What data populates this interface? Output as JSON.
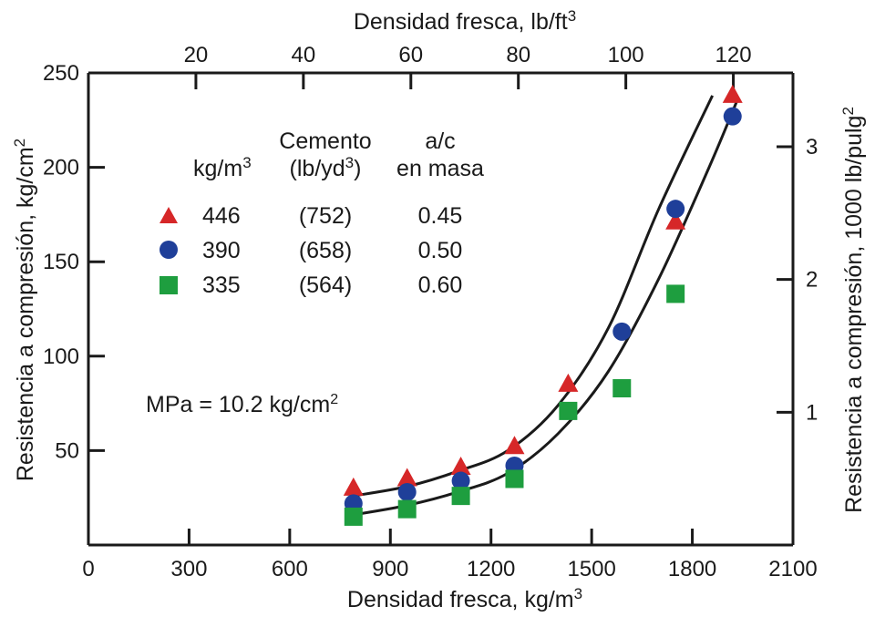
{
  "chart_data": {
    "type": "scatter",
    "xlabel_bottom": "Densidad fresca, kg/m",
    "xlabel_bottom_sup": "3",
    "xlabel_top": "Densidad fresca, lb/ft",
    "xlabel_top_sup": "3",
    "ylabel_left": "Resistencia a compresión, kg/cm",
    "ylabel_left_sup": "2",
    "ylabel_right": "Resistencia a compresión, 1000 lb/pulg",
    "ylabel_right_sup": "2",
    "xlim": [
      0,
      2100
    ],
    "ylim": [
      0,
      250
    ],
    "x_ticks": [
      "0",
      "300",
      "600",
      "900",
      "1200",
      "1500",
      "1800",
      "2100"
    ],
    "y_ticks": [
      "50",
      "100",
      "150",
      "200",
      "250"
    ],
    "top_ticks": [
      "20",
      "40",
      "60",
      "80",
      "100",
      "120"
    ],
    "right_ticks": [
      "1",
      "2",
      "3"
    ],
    "legend": {
      "col_unit": "kg/m",
      "col_unit_sup": "3",
      "col_cement_line1": "Cemento",
      "col_cement_line2": "(lb/yd",
      "col_cement_line2_sup": "3",
      "col_cement_line2_end": ")",
      "col_ac_line1": "a/c",
      "col_ac_line2": "en masa",
      "rows": [
        {
          "kg": "446",
          "lb": "(752)",
          "ac": "0.45"
        },
        {
          "kg": "390",
          "lb": "(658)",
          "ac": "0.50"
        },
        {
          "kg": "335",
          "lb": "(564)",
          "ac": "0.60"
        }
      ]
    },
    "annotation": "MPa = 10.2 kg/cm",
    "annotation_sup": "2",
    "series": [
      {
        "marker": "triangle",
        "color": "#d62728",
        "x": [
          790,
          950,
          1110,
          1270,
          1430,
          1750,
          1920
        ],
        "y": [
          30,
          35,
          41,
          52,
          85,
          171,
          238
        ]
      },
      {
        "marker": "circle",
        "color": "#1f3f99",
        "x": [
          790,
          950,
          1110,
          1270,
          1590,
          1750,
          1920
        ],
        "y": [
          22,
          28,
          34,
          42,
          113,
          178,
          227
        ]
      },
      {
        "marker": "square",
        "color": "#1e9e3f",
        "x": [
          790,
          950,
          1110,
          1270,
          1430,
          1590,
          1750
        ],
        "y": [
          15,
          19,
          26,
          35,
          71,
          83,
          133
        ]
      }
    ],
    "fit_curves": [
      {
        "x": [
          790,
          950,
          1100,
          1250,
          1400,
          1550,
          1700,
          1860
        ],
        "y": [
          26,
          31,
          39,
          50,
          74,
          115,
          178,
          238
        ]
      },
      {
        "x": [
          790,
          950,
          1100,
          1250,
          1400,
          1550,
          1700,
          1850,
          1935
        ],
        "y": [
          16,
          21,
          28,
          38,
          59,
          92,
          141,
          200,
          236
        ]
      }
    ]
  }
}
